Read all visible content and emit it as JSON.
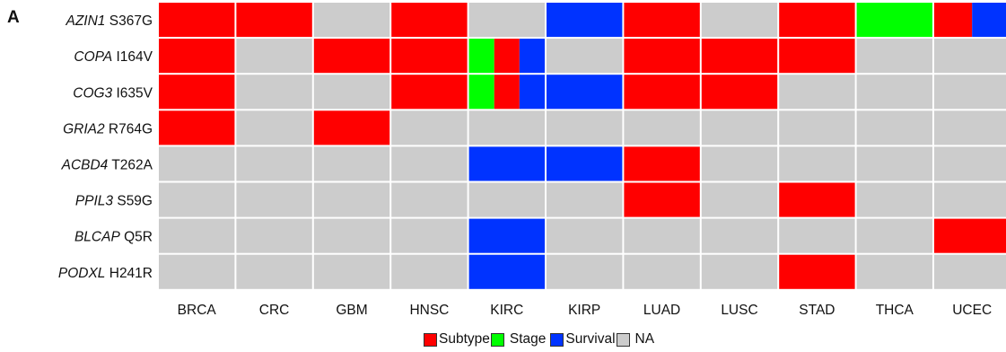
{
  "panel_label": "A",
  "colors": {
    "Subtype": "#ff0000",
    "Stage": "#00ff00",
    "Survival": "#0033ff",
    "NA": "#cccccc"
  },
  "legend": [
    {
      "key": "Subtype",
      "label": "Subtype"
    },
    {
      "key": "Stage",
      "label": "Stage"
    },
    {
      "key": "Survival",
      "label": "Survival"
    },
    {
      "key": "NA",
      "label": "NA"
    }
  ],
  "chart_data": {
    "type": "heatmap",
    "columns": [
      "BRCA",
      "CRC",
      "GBM",
      "HNSC",
      "KIRC",
      "KIRP",
      "LUAD",
      "LUSC",
      "STAD",
      "THCA",
      "UCEC"
    ],
    "rows": [
      {
        "gene": "AZIN1",
        "mutation": "S367G",
        "cells": [
          [
            "Subtype"
          ],
          [
            "Subtype"
          ],
          [
            "NA"
          ],
          [
            "Subtype"
          ],
          [
            "NA"
          ],
          [
            "Survival"
          ],
          [
            "Subtype"
          ],
          [
            "NA"
          ],
          [
            "Subtype"
          ],
          [
            "Stage"
          ],
          [
            "Subtype",
            "Survival"
          ]
        ]
      },
      {
        "gene": "COPA",
        "mutation": "I164V",
        "cells": [
          [
            "Subtype"
          ],
          [
            "NA"
          ],
          [
            "Subtype"
          ],
          [
            "Subtype"
          ],
          [
            "Stage",
            "Subtype",
            "Survival"
          ],
          [
            "NA"
          ],
          [
            "Subtype"
          ],
          [
            "Subtype"
          ],
          [
            "Subtype"
          ],
          [
            "NA"
          ],
          [
            "NA"
          ]
        ]
      },
      {
        "gene": "COG3",
        "mutation": "I635V",
        "cells": [
          [
            "Subtype"
          ],
          [
            "NA"
          ],
          [
            "NA"
          ],
          [
            "Subtype"
          ],
          [
            "Stage",
            "Subtype",
            "Survival"
          ],
          [
            "Survival"
          ],
          [
            "Subtype"
          ],
          [
            "Subtype"
          ],
          [
            "NA"
          ],
          [
            "NA"
          ],
          [
            "NA"
          ]
        ]
      },
      {
        "gene": "GRIA2",
        "mutation": "R764G",
        "cells": [
          [
            "Subtype"
          ],
          [
            "NA"
          ],
          [
            "Subtype"
          ],
          [
            "NA"
          ],
          [
            "NA"
          ],
          [
            "NA"
          ],
          [
            "NA"
          ],
          [
            "NA"
          ],
          [
            "NA"
          ],
          [
            "NA"
          ],
          [
            "NA"
          ]
        ]
      },
      {
        "gene": "ACBD4",
        "mutation": "T262A",
        "cells": [
          [
            "NA"
          ],
          [
            "NA"
          ],
          [
            "NA"
          ],
          [
            "NA"
          ],
          [
            "Survival"
          ],
          [
            "Survival"
          ],
          [
            "Subtype"
          ],
          [
            "NA"
          ],
          [
            "NA"
          ],
          [
            "NA"
          ],
          [
            "NA"
          ]
        ]
      },
      {
        "gene": "PPIL3",
        "mutation": "S59G",
        "cells": [
          [
            "NA"
          ],
          [
            "NA"
          ],
          [
            "NA"
          ],
          [
            "NA"
          ],
          [
            "NA"
          ],
          [
            "NA"
          ],
          [
            "Subtype"
          ],
          [
            "NA"
          ],
          [
            "Subtype"
          ],
          [
            "NA"
          ],
          [
            "NA"
          ]
        ]
      },
      {
        "gene": "BLCAP",
        "mutation": "Q5R",
        "cells": [
          [
            "NA"
          ],
          [
            "NA"
          ],
          [
            "NA"
          ],
          [
            "NA"
          ],
          [
            "Survival"
          ],
          [
            "NA"
          ],
          [
            "NA"
          ],
          [
            "NA"
          ],
          [
            "NA"
          ],
          [
            "NA"
          ],
          [
            "Subtype"
          ]
        ]
      },
      {
        "gene": "PODXL",
        "mutation": "H241R",
        "cells": [
          [
            "NA"
          ],
          [
            "NA"
          ],
          [
            "NA"
          ],
          [
            "NA"
          ],
          [
            "Survival"
          ],
          [
            "NA"
          ],
          [
            "NA"
          ],
          [
            "NA"
          ],
          [
            "Subtype"
          ],
          [
            "NA"
          ],
          [
            "NA"
          ]
        ]
      }
    ]
  }
}
